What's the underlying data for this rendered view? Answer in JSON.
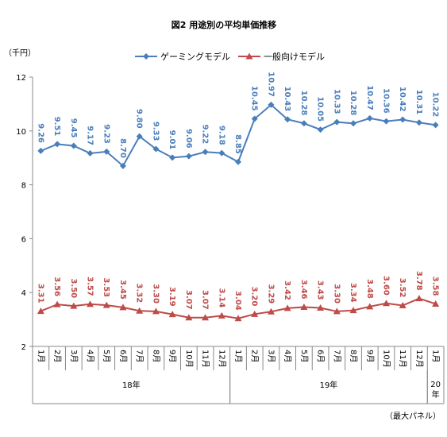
{
  "chart_data": {
    "type": "line",
    "title": "図2 用途別の平均単価推移",
    "ylabel": "（千円）",
    "footnote": "（最大パネル）",
    "ylim": [
      2,
      12
    ],
    "yticks": [
      2,
      4,
      6,
      8,
      10,
      12
    ],
    "grid": false,
    "legend_position": "top",
    "categories": [
      "1月",
      "2月",
      "3月",
      "4月",
      "5月",
      "6月",
      "7月",
      "8月",
      "9月",
      "10月",
      "11月",
      "12月",
      "1月",
      "2月",
      "3月",
      "4月",
      "5月",
      "6月",
      "7月",
      "8月",
      "9月",
      "10月",
      "11月",
      "12月",
      "1月"
    ],
    "year_groups": [
      {
        "label": "18年",
        "start": 0,
        "end": 11
      },
      {
        "label": "19年",
        "start": 12,
        "end": 23
      },
      {
        "label": "20年",
        "start": 24,
        "end": 24
      }
    ],
    "series": [
      {
        "name": "ゲーミングモデル",
        "color": "#4A7EBB",
        "marker": "diamond",
        "values": [
          9.26,
          9.51,
          9.45,
          9.17,
          9.23,
          8.7,
          9.8,
          9.33,
          9.01,
          9.06,
          9.22,
          9.18,
          8.85,
          10.45,
          10.97,
          10.43,
          10.28,
          10.05,
          10.33,
          10.28,
          10.47,
          10.36,
          10.42,
          10.31,
          10.22
        ]
      },
      {
        "name": "一般向けモデル",
        "color": "#BE4B48",
        "marker": "triangle",
        "values": [
          3.31,
          3.56,
          3.5,
          3.57,
          3.53,
          3.45,
          3.32,
          3.3,
          3.19,
          3.07,
          3.07,
          3.14,
          3.04,
          3.2,
          3.29,
          3.42,
          3.46,
          3.43,
          3.3,
          3.34,
          3.48,
          3.6,
          3.52,
          3.78,
          3.58
        ]
      }
    ]
  }
}
